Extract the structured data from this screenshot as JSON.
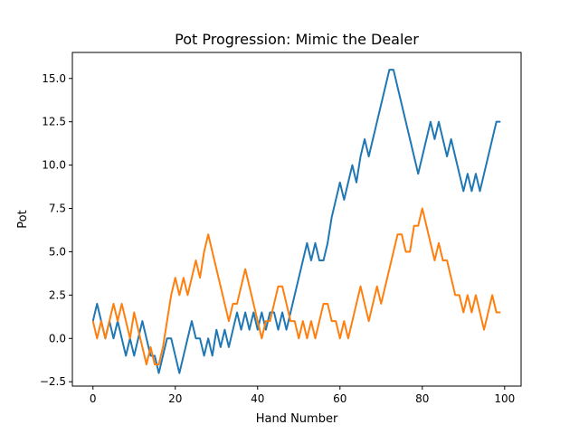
{
  "chart_data": {
    "type": "line",
    "title": "Pot Progression: Mimic the Dealer",
    "xlabel": "Hand Number",
    "ylabel": "Pot",
    "xlim": [
      -5,
      104
    ],
    "ylim": [
      -2.75,
      16.5
    ],
    "x_ticks": [
      0,
      20,
      40,
      60,
      80,
      100
    ],
    "x_tick_labels": [
      "0",
      "20",
      "40",
      "60",
      "80",
      "100"
    ],
    "y_ticks": [
      -2.5,
      0,
      2.5,
      5,
      7.5,
      10,
      12.5,
      15
    ],
    "y_tick_labels": [
      "−2.5",
      "0.0",
      "2.5",
      "5.0",
      "7.5",
      "10.0",
      "12.5",
      "15.0"
    ],
    "grid": false,
    "x": [
      0,
      1,
      2,
      3,
      4,
      5,
      6,
      7,
      8,
      9,
      10,
      11,
      12,
      13,
      14,
      15,
      16,
      17,
      18,
      19,
      20,
      21,
      22,
      23,
      24,
      25,
      26,
      27,
      28,
      29,
      30,
      31,
      32,
      33,
      34,
      35,
      36,
      37,
      38,
      39,
      40,
      41,
      42,
      43,
      44,
      45,
      46,
      47,
      48,
      49,
      50,
      51,
      52,
      53,
      54,
      55,
      56,
      57,
      58,
      59,
      60,
      61,
      62,
      63,
      64,
      65,
      66,
      67,
      68,
      69,
      70,
      71,
      72,
      73,
      74,
      75,
      76,
      77,
      78,
      79,
      80,
      81,
      82,
      83,
      84,
      85,
      86,
      87,
      88,
      89,
      90,
      91,
      92,
      93,
      94,
      95,
      96,
      97,
      98,
      99
    ],
    "series": [
      {
        "color": "#1f77b4",
        "values": [
          1,
          2,
          1,
          0,
          1,
          0,
          1,
          0,
          -1,
          0,
          -1,
          0,
          1,
          0,
          -1,
          -1,
          -2,
          -1,
          0,
          0,
          -1,
          -2,
          -1,
          0,
          1,
          0,
          0,
          -1,
          0,
          -1,
          0.5,
          -0.5,
          0.5,
          -0.5,
          0.5,
          1.5,
          0.5,
          1.5,
          0.5,
          1.5,
          0.5,
          1.5,
          0.5,
          1.5,
          1.5,
          0.5,
          1.5,
          0.5,
          1.5,
          2.5,
          3.5,
          4.5,
          5.5,
          4.5,
          5.5,
          4.5,
          4.5,
          5.5,
          7,
          8,
          9,
          8,
          9,
          10,
          9,
          10.5,
          11.5,
          10.5,
          11.5,
          12.5,
          13.5,
          14.5,
          15.5,
          15.5,
          14.5,
          13.5,
          12.5,
          11.5,
          10.5,
          9.5,
          10.5,
          11.5,
          12.5,
          11.5,
          12.5,
          11.5,
          10.5,
          11.5,
          10.5,
          9.5,
          8.5,
          9.5,
          8.5,
          9.5,
          8.5,
          9.5,
          10.5,
          11.5,
          12.5,
          12.5
        ]
      },
      {
        "color": "#ff7f0e",
        "values": [
          1,
          0,
          1,
          0,
          1,
          2,
          1,
          2,
          1,
          0,
          1.5,
          0.5,
          -0.5,
          -1.5,
          -0.5,
          -1.5,
          -1.5,
          -0.5,
          1,
          2.5,
          3.5,
          2.5,
          3.5,
          2.5,
          3.5,
          4.5,
          3.5,
          5,
          6,
          5,
          4,
          3,
          2,
          1,
          2,
          2,
          3,
          4,
          3,
          2,
          1,
          0,
          1,
          1,
          2,
          3,
          3,
          2,
          1,
          1,
          0,
          1,
          0,
          1,
          0,
          1,
          2,
          2,
          1,
          1,
          0,
          1,
          0,
          1,
          2,
          3,
          2,
          1,
          2,
          3,
          2,
          3,
          4,
          5,
          6,
          6,
          5,
          5,
          6.5,
          6.5,
          7.5,
          6.5,
          5.5,
          4.5,
          5.5,
          4.5,
          4.5,
          3.5,
          2.5,
          2.5,
          1.5,
          2.5,
          1.5,
          2.5,
          1.5,
          0.5,
          1.5,
          2.5,
          1.5,
          1.5
        ]
      }
    ]
  }
}
